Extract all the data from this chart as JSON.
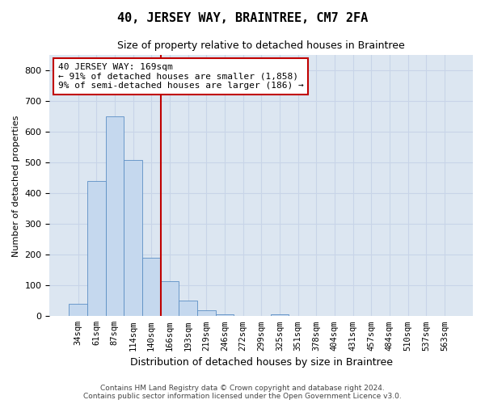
{
  "title": "40, JERSEY WAY, BRAINTREE, CM7 2FA",
  "subtitle": "Size of property relative to detached houses in Braintree",
  "xlabel": "Distribution of detached houses by size in Braintree",
  "ylabel": "Number of detached properties",
  "bar_labels": [
    "34sqm",
    "61sqm",
    "87sqm",
    "114sqm",
    "140sqm",
    "166sqm",
    "193sqm",
    "219sqm",
    "246sqm",
    "272sqm",
    "299sqm",
    "325sqm",
    "351sqm",
    "378sqm",
    "404sqm",
    "431sqm",
    "457sqm",
    "484sqm",
    "510sqm",
    "537sqm",
    "563sqm"
  ],
  "bar_values": [
    40,
    440,
    650,
    510,
    190,
    115,
    50,
    20,
    5,
    0,
    0,
    5,
    0,
    0,
    0,
    0,
    0,
    0,
    0,
    0,
    0
  ],
  "bar_color": "#c5d8ee",
  "bar_edge_color": "#5b8ec4",
  "grid_color": "#c8d4e8",
  "background_color": "#dce6f1",
  "vline_color": "#c00000",
  "annotation_text": "40 JERSEY WAY: 169sqm\n← 91% of detached houses are smaller (1,858)\n9% of semi-detached houses are larger (186) →",
  "annotation_box_color": "white",
  "annotation_box_edge": "#c00000",
  "ylim": [
    0,
    850
  ],
  "yticks": [
    0,
    100,
    200,
    300,
    400,
    500,
    600,
    700,
    800
  ],
  "footer_line1": "Contains HM Land Registry data © Crown copyright and database right 2024.",
  "footer_line2": "Contains public sector information licensed under the Open Government Licence v3.0."
}
